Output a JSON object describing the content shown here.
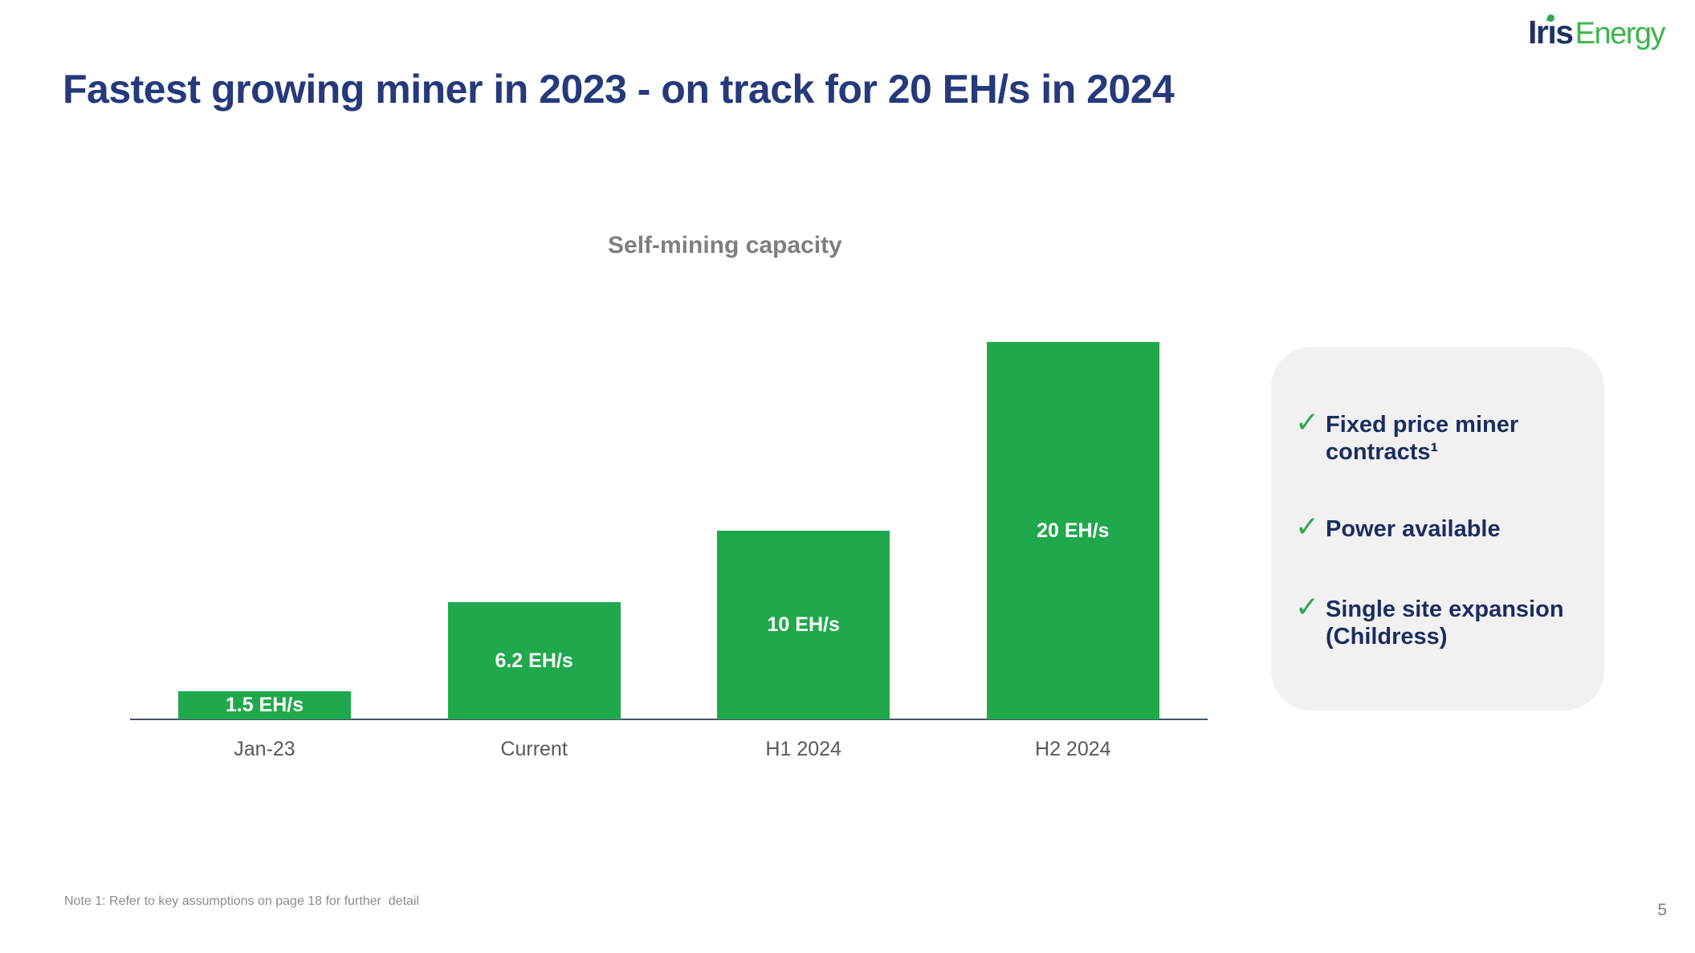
{
  "slide": {
    "title": "Fastest growing miner in 2023 - on track for 20 EH/s in 2024",
    "title_color": "#25397B",
    "footnote": "Note 1: Refer to key assumptions on page 18 for further  detail",
    "page_number": "5"
  },
  "logo": {
    "iris": "Iris",
    "energy": "Energy",
    "iris_color": "#1E3263",
    "energy_color": "#3CB54A",
    "leaf_dot_color": "#2FA94F"
  },
  "chart_data": {
    "type": "bar",
    "title": "Self-mining capacity",
    "unit": "EH/s",
    "categories": [
      "Jan-23",
      "Current",
      "H1 2024",
      "H2 2024"
    ],
    "values": [
      1.5,
      6.2,
      10,
      20
    ],
    "bar_labels": [
      "1.5 EH/s",
      "6.2 EH/s",
      "10 EH/s",
      "20 EH/s"
    ],
    "xlabel": "",
    "ylabel": "",
    "ylim": [
      0,
      20
    ],
    "grid": false,
    "legend": false,
    "bar_color": "#20A84C",
    "axis_color": "#44546A",
    "value_label_color": "#FFFFFF",
    "category_label_color": "#595959",
    "title_color": "#7F7F7F"
  },
  "checklist": {
    "check_glyph": "✓",
    "check_color": "#2FA94F",
    "panel_color": "#F1F1F2",
    "text_color": "#1B2D5F",
    "items": [
      {
        "lines": [
          "Fixed price miner",
          "contracts¹"
        ]
      },
      {
        "lines": [
          "Power available"
        ]
      },
      {
        "lines": [
          "Single site expansion",
          "(Childress)"
        ]
      }
    ]
  }
}
